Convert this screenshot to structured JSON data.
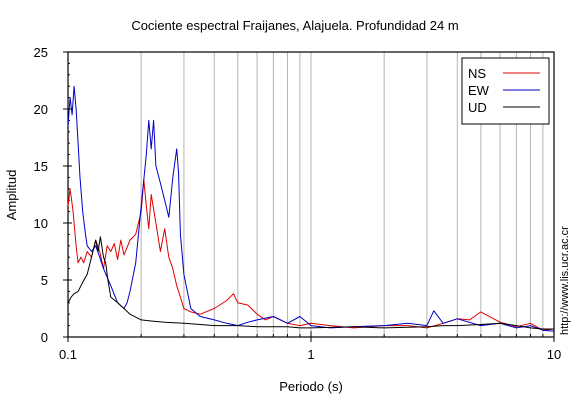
{
  "chart_data": {
    "type": "line",
    "title": "Cociente espectral Fraijanes, Alajuela. Profundidad 24 m",
    "xlabel": "Periodo (s)",
    "ylabel": "Amplitud",
    "x_scale": "log",
    "xlim": [
      0.1,
      10
    ],
    "ylim": [
      0,
      25
    ],
    "x_ticks": [
      {
        "value": 0.1,
        "label": "0.1"
      },
      {
        "value": 1,
        "label": "1"
      },
      {
        "value": 10,
        "label": "10"
      }
    ],
    "y_ticks": [
      {
        "value": 0,
        "label": "0"
      },
      {
        "value": 5,
        "label": "5"
      },
      {
        "value": 10,
        "label": "10"
      },
      {
        "value": 15,
        "label": "15"
      },
      {
        "value": 20,
        "label": "20"
      },
      {
        "value": 25,
        "label": "25"
      }
    ],
    "grid": "vertical",
    "legend_position": "top-right",
    "watermark": "http://www.lis.ucr.ac.cr",
    "series": [
      {
        "name": "NS",
        "color": "#e00000",
        "x": [
          0.1,
          0.102,
          0.105,
          0.108,
          0.11,
          0.113,
          0.116,
          0.12,
          0.125,
          0.13,
          0.135,
          0.14,
          0.145,
          0.15,
          0.155,
          0.16,
          0.165,
          0.17,
          0.18,
          0.19,
          0.2,
          0.205,
          0.21,
          0.215,
          0.22,
          0.23,
          0.24,
          0.25,
          0.26,
          0.27,
          0.28,
          0.29,
          0.3,
          0.32,
          0.35,
          0.4,
          0.45,
          0.48,
          0.5,
          0.55,
          0.6,
          0.65,
          0.7,
          0.8,
          0.9,
          1.0,
          1.2,
          1.5,
          2.0,
          2.5,
          3.0,
          3.5,
          4.0,
          4.5,
          5.0,
          6.0,
          7.0,
          8.0,
          9.0,
          10.0
        ],
        "y": [
          11.5,
          13.0,
          11.0,
          8.0,
          6.5,
          7.0,
          6.5,
          7.5,
          7.0,
          8.5,
          7.5,
          6.0,
          8.0,
          7.5,
          8.2,
          6.8,
          8.5,
          7.2,
          8.5,
          9.0,
          11.0,
          13.8,
          11.5,
          9.5,
          12.5,
          10.0,
          7.5,
          9.5,
          7.0,
          6.0,
          4.5,
          3.5,
          2.5,
          2.2,
          2.0,
          2.5,
          3.2,
          3.8,
          3.0,
          2.8,
          2.0,
          1.5,
          1.8,
          1.2,
          1.0,
          1.2,
          1.0,
          0.8,
          1.0,
          1.0,
          0.8,
          1.2,
          1.6,
          1.5,
          2.2,
          1.3,
          0.9,
          1.2,
          0.6,
          0.7
        ]
      },
      {
        "name": "EW",
        "color": "#0000c8",
        "x": [
          0.1,
          0.102,
          0.104,
          0.106,
          0.108,
          0.11,
          0.112,
          0.115,
          0.118,
          0.12,
          0.125,
          0.13,
          0.135,
          0.14,
          0.15,
          0.16,
          0.17,
          0.175,
          0.18,
          0.19,
          0.2,
          0.21,
          0.215,
          0.22,
          0.225,
          0.23,
          0.24,
          0.25,
          0.26,
          0.27,
          0.28,
          0.285,
          0.29,
          0.3,
          0.32,
          0.35,
          0.4,
          0.45,
          0.5,
          0.55,
          0.6,
          0.7,
          0.8,
          0.9,
          1.0,
          1.2,
          1.5,
          2.0,
          2.5,
          3.0,
          3.2,
          3.5,
          4.0,
          5.0,
          6.0,
          7.0,
          8.0,
          9.0,
          10.0
        ],
        "y": [
          18.5,
          21.0,
          19.5,
          22.0,
          20.0,
          17.0,
          14.0,
          11.0,
          9.0,
          8.0,
          7.5,
          8.0,
          7.0,
          6.0,
          4.5,
          3.0,
          2.5,
          3.0,
          4.0,
          6.5,
          11.5,
          16.0,
          19.0,
          16.5,
          19.0,
          15.0,
          13.5,
          12.0,
          10.5,
          14.0,
          16.5,
          14.5,
          9.0,
          5.5,
          2.5,
          1.8,
          1.5,
          1.2,
          1.0,
          1.3,
          1.5,
          1.8,
          1.2,
          1.8,
          1.0,
          0.8,
          0.9,
          1.0,
          1.2,
          1.0,
          2.3,
          1.2,
          1.6,
          1.0,
          1.2,
          0.8,
          1.0,
          0.6,
          0.5
        ]
      },
      {
        "name": "UD",
        "color": "#000000",
        "x": [
          0.1,
          0.103,
          0.106,
          0.11,
          0.115,
          0.12,
          0.125,
          0.13,
          0.133,
          0.136,
          0.14,
          0.143,
          0.146,
          0.15,
          0.16,
          0.17,
          0.18,
          0.2,
          0.22,
          0.25,
          0.3,
          0.35,
          0.4,
          0.5,
          0.6,
          0.7,
          0.8,
          0.9,
          1.0,
          1.5,
          2.0,
          3.0,
          3.5,
          4.0,
          5.0,
          6.0,
          7.0,
          8.0,
          9.0,
          10.0
        ],
        "y": [
          3.0,
          3.5,
          3.8,
          4.0,
          4.8,
          5.5,
          7.0,
          8.5,
          7.5,
          8.8,
          7.0,
          6.5,
          5.0,
          3.5,
          3.0,
          2.5,
          2.0,
          1.5,
          1.4,
          1.3,
          1.2,
          1.1,
          1.0,
          1.0,
          0.9,
          0.9,
          0.9,
          0.8,
          0.8,
          0.9,
          0.8,
          0.9,
          1.0,
          1.0,
          1.1,
          1.2,
          1.0,
          0.8,
          0.7,
          0.7
        ]
      }
    ]
  }
}
